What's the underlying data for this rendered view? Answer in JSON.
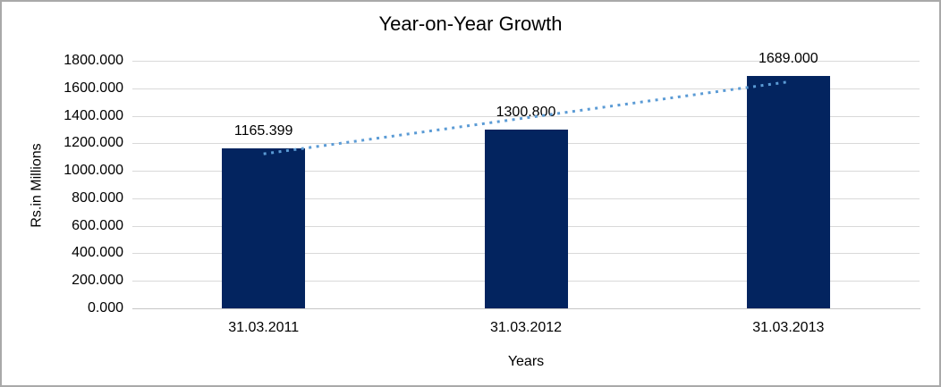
{
  "chart_data": {
    "type": "bar",
    "title": "Year-on-Year Growth",
    "xlabel": "Years",
    "ylabel": "Rs.in Millions",
    "categories": [
      "31.03.2011",
      "31.03.2012",
      "31.03.2013"
    ],
    "values": [
      1165.399,
      1300.8,
      1689
    ],
    "data_labels": [
      "1165.399",
      "1300.800",
      "1689.000"
    ],
    "ylim": [
      0,
      1800
    ],
    "y_tick_interval": 200,
    "y_tick_labels": [
      "0.000",
      "200.000",
      "400.000",
      "600.000",
      "800.000",
      "1000.000",
      "1200.000",
      "1400.000",
      "1600.000",
      "1800.000"
    ],
    "grid": true,
    "legend": "none",
    "trendline": {
      "type": "linear",
      "style": "dotted",
      "color": "#5B9BD5"
    },
    "colors": {
      "bar": "#03245F",
      "gridline": "#D9D9D9",
      "axis_line": "#C6C6C6",
      "text": "#000000",
      "frame_border": "#A9A9A9",
      "background": "#FFFFFF"
    }
  }
}
